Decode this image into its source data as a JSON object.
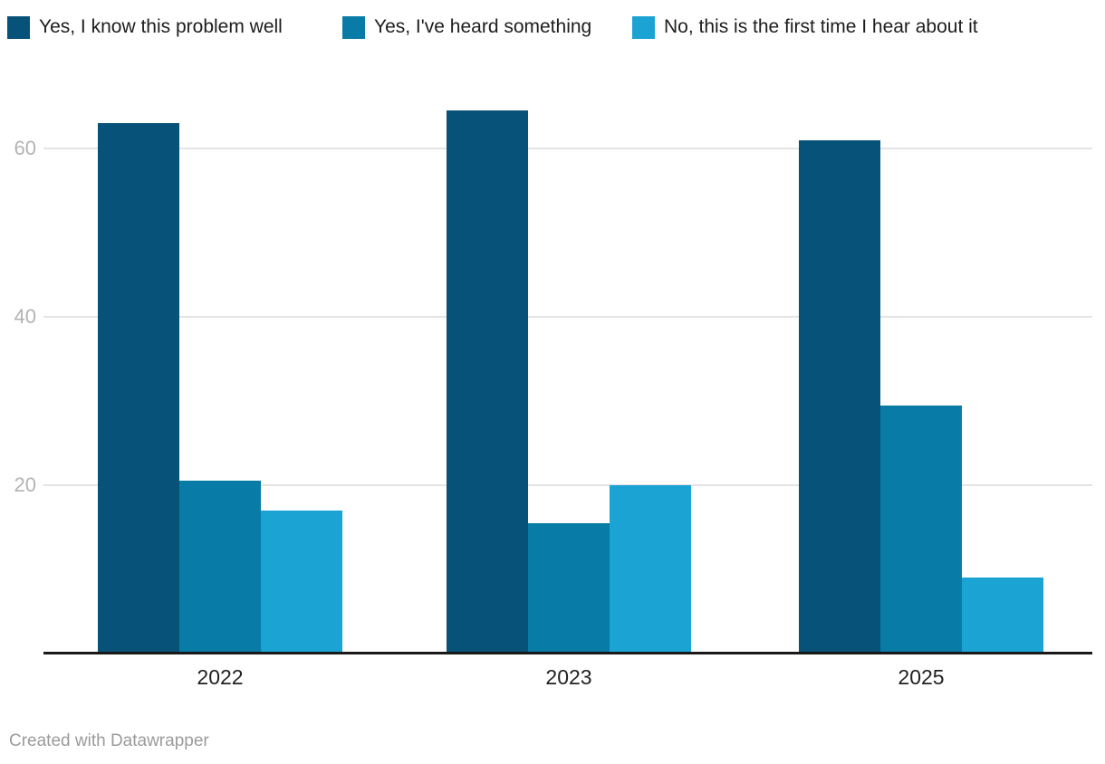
{
  "chart_data": {
    "type": "bar",
    "title": "",
    "categories": [
      "2022",
      "2023",
      "2025"
    ],
    "series": [
      {
        "name": "Yes, I know this problem well",
        "color": "#065278",
        "values": [
          63,
          64.5,
          61
        ]
      },
      {
        "name": "Yes, I've heard something",
        "color": "#087ba6",
        "values": [
          20.5,
          15.5,
          29.5
        ]
      },
      {
        "name": "No, this is the first time I hear about it",
        "color": "#1ba3d3",
        "values": [
          17,
          20,
          9
        ]
      }
    ],
    "xlabel": "",
    "ylabel": "",
    "yticks": [
      20,
      40,
      60
    ],
    "ylim": [
      0,
      68
    ],
    "grid": "horizontal",
    "legend_position": "top"
  },
  "footer": {
    "credit": "Created with Datawrapper"
  },
  "colors": {
    "background": "#ffffff",
    "axis": "#191919",
    "gridline": "#e4e4e4",
    "tick_label": "#b3b3b3",
    "category_label": "#222222",
    "legend_text": "#1d1d1d",
    "footer_text": "#9b9b9b"
  }
}
